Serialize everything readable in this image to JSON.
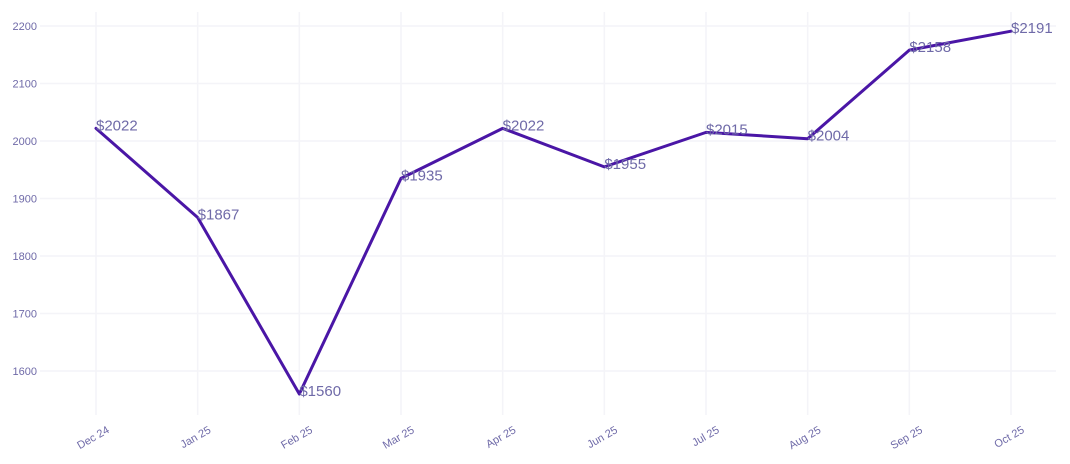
{
  "chart_data": {
    "type": "line",
    "title": "",
    "xlabel": "",
    "ylabel": "",
    "categories": [
      "Dec 24",
      "Jan 25",
      "Feb 25",
      "Mar 25",
      "Apr 25",
      "Jun 25",
      "Jul 25",
      "Aug 25",
      "Sep 25",
      "Oct 25"
    ],
    "series": [
      {
        "values": [
          2022,
          1867,
          1560,
          1935,
          2022,
          1955,
          2015,
          2004,
          2158,
          2191
        ]
      }
    ],
    "data_labels": [
      "$2022",
      "$1867",
      "$1560",
      "$1935",
      "$2022",
      "$1955",
      "$2015",
      "$2004",
      "$2158",
      "$2191"
    ],
    "y_ticks": [
      "1600",
      "1700",
      "1800",
      "1900",
      "2000",
      "2100",
      "2200"
    ],
    "ylim": [
      1560,
      2191
    ],
    "grid": true,
    "legend": "none",
    "colors": {
      "line": "#4a16a6",
      "text": "#6f6aa8",
      "grid": "#f4f4f8"
    }
  }
}
